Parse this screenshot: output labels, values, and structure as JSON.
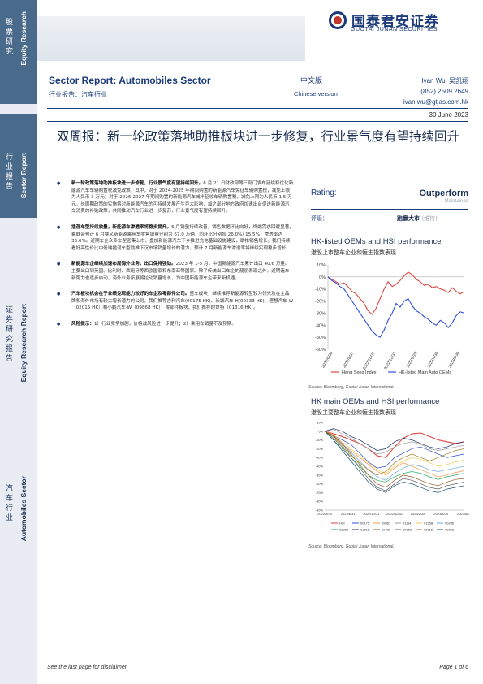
{
  "sidebar": {
    "blocks": [
      {
        "cn": [
          "股",
          "票",
          "研",
          "究"
        ],
        "en": "Equity Research"
      },
      {
        "cn": [
          "行",
          "业",
          "报",
          "告"
        ],
        "en": "Sector Report"
      },
      {
        "cn": [
          "证",
          "券",
          "研",
          "究",
          "报",
          "告"
        ],
        "en": "Equity Research Report"
      },
      {
        "cn": [
          "汽",
          "车",
          "行",
          "业"
        ],
        "en": "Automobiles Sector"
      }
    ]
  },
  "logo": {
    "cn": "国泰君安证券",
    "en": "GUOTAI JUNAN SECURITIES"
  },
  "header": {
    "title": "Sector Report:  Automobiles Sector",
    "subtitle": "行业报告：汽车行业",
    "lang": "中文版",
    "lang_en": "Chinese version",
    "analyst_name": "Ivan  Wu",
    "analyst_cn": "吴凯翔",
    "phone": "(852) 2509 2649",
    "email": "ivan.wu@gtjas.com.hk",
    "date": "30 June 2023"
  },
  "headline": "双周报：新一轮政策落地助推板块进一步修复，行业景气度有望持续回升",
  "bullets": [
    {
      "bold": "新一轮政策落地助推板块进一步修复，行业景气度有望持续回升。",
      "text": "6 月 21 日财政部等三部门发布延续和优化新能源汽车车辆购置税减免政策，其中，对于 2024-2025 年期间购置的新能源汽车免征车辆购置税，减免上限为人民币 3 万元；对于 2026-2027 年期间购置的新能源汽车减半征收车辆购置税，减免上限为人民币 1.5 万元。长周期政策的实施将对新能源汽车的可持续发展产生巨大影响，加之部分地方政府加速出台促进新能源汽车消费的补贴政策，共同推动汽车行业进一步复苏，行业景气度有望持续回升。"
    },
    {
      "bold": "插混车型持续放量，新能源车渗透率将稳步提升。",
      "text": "6 月销量持续改善，销售数据环比向好，终端需求回暖显著，乘联会预计 6 月狭义新能源乘用车零售销量分别为 67.0 万辆，同环比分别增 26.0%/ 15.5%，渗透率达 36.6%。近期车企众多车型密集上市，叠加新能源汽车下乡推进充电基础设施建设，助推销售增长。我们持续看好高性价比中低端插混车型助推下沉市场销量增长的潜力，预计 7 月新能源车渗透率将继续实现稳步增长。"
    },
    {
      "bold": "新能源车企继续加速布局海外业务，出口保持强劲。",
      "text": "2023 年 1-5 月，中国新能源汽车累计出口 40.6 万量。主要出口到英国、比利时、西班牙等西欧国家和东南亚等国家。除了传统出口车企的靓丽表现之外，近期造车新势力也逐步启动，海外业务拓展将拉动销量增长，为中国新能源车企带来新机遇。"
    },
    {
      "bold": "汽车板块机会在于业绩兑现能力较好的车企及零部件公司。",
      "text": "整车板块，继续推荐新能源转型较为领先及在主品牌和海外市场有较大增长潜力的公司，我们推荐吉利汽车(00175 HK)、长城汽车-H(02333 HK)、理想汽车-W（02015 HK）和小鹏汽车-W（09868 HK）；零部件板块，我们推荐耐世特（01316 HK）。"
    },
    {
      "bold": "风险提示：",
      "text": "1）行业竞争加剧，价格战风险进一步提升；2）乘用车销量不及预期。"
    }
  ],
  "rating": {
    "label": "Rating:",
    "value": "Outperform",
    "maintained": "Maintained",
    "cn_label": "评级：",
    "cn_value": "跑赢大市",
    "cn_maint": "(维持)"
  },
  "chart1_text": {
    "title": "HK-listed OEMs and HSI performance",
    "subtitle": "港股上市整车企业和恒生指数表现",
    "source": "Source: Bloomberg, Guotai Junan International."
  },
  "chart2_text": {
    "title": "HK main OEMs and HSI performance",
    "subtitle": "港股主要整车企业和恒生指数表现",
    "source": "Source: Bloomberg, Guotai Junan International."
  },
  "chart_data": [
    {
      "type": "line",
      "title": "HK-listed OEMs and HSI performance",
      "ylim": [
        -60,
        10
      ],
      "yticks": [
        "10%",
        "0%",
        "-10%",
        "-20%",
        "-30%",
        "-40%",
        "-50%",
        "-60%"
      ],
      "xticks": [
        "2022/6/30",
        "2022/8/31",
        "2022/10/31",
        "2022/12/31",
        "2023/2/28",
        "2023/4/30",
        "2023/6/30"
      ],
      "colors": {
        "hsi": "#e0433d",
        "auto": "#2f4fd6"
      },
      "legend": [
        "Heng Seng Index",
        "HK-listed Main Auto OEMs"
      ],
      "series": [
        {
          "name": "Heng Seng Index",
          "values": [
            0,
            -2,
            -4,
            -6,
            -5,
            -8,
            -12,
            -14,
            -18,
            -22,
            -28,
            -31,
            -26,
            -18,
            -10,
            -4,
            -8,
            -6,
            -3,
            1,
            4,
            2,
            -2,
            -4,
            -7,
            -6,
            -9,
            -8,
            -10,
            -11,
            -13,
            -9,
            -12,
            -14,
            -12
          ]
        },
        {
          "name": "HK-listed Main Auto OEMs",
          "values": [
            0,
            -3,
            -5,
            -8,
            -10,
            -15,
            -20,
            -25,
            -30,
            -35,
            -40,
            -45,
            -48,
            -50,
            -44,
            -36,
            -30,
            -22,
            -25,
            -20,
            -18,
            -24,
            -28,
            -30,
            -33,
            -35,
            -38,
            -40,
            -36,
            -38,
            -42,
            -38,
            -32,
            -29,
            -30
          ]
        }
      ]
    },
    {
      "type": "line",
      "title": "HK main OEMs and HSI performance",
      "ylim": [
        -90,
        10
      ],
      "yticks": [
        "10%",
        "0%",
        "-10%",
        "-20%",
        "-30%",
        "-40%",
        "-50%",
        "-60%",
        "-70%",
        "-80%",
        "-90%"
      ],
      "xticks": [
        "2022/6/30",
        "2022/8/31",
        "2022/10/31",
        "2022/12/31",
        "2023/2/28",
        "2023/4/30",
        "2023/6/30"
      ],
      "legend": [
        "HSI",
        "00175",
        "09863",
        "01114",
        "01958",
        "00236",
        "02333",
        "01211",
        "00489",
        "09866",
        "02015",
        "09863"
      ],
      "series": [
        {
          "name": "HSI",
          "color": "#e0433d",
          "values": [
            0,
            -3,
            -6,
            -10,
            -14,
            -20,
            -28,
            -30,
            -18,
            -8,
            -3,
            -2,
            -6,
            -10,
            -12,
            -14,
            -12
          ]
        },
        {
          "name": "00175",
          "color": "#2f4fd6",
          "values": [
            0,
            -5,
            -10,
            -15,
            -25,
            -35,
            -42,
            -40,
            -30,
            -25,
            -20,
            -18,
            -22,
            -26,
            -30,
            -28,
            -26
          ]
        },
        {
          "name": "09863",
          "color": "#f2994a",
          "values": [
            0,
            -8,
            -15,
            -22,
            -30,
            -38,
            -46,
            -50,
            -42,
            -36,
            -40,
            -44,
            -48,
            -52,
            -50,
            -47,
            -45
          ]
        },
        {
          "name": "01114",
          "color": "#9b9b9b",
          "values": [
            0,
            2,
            -3,
            -8,
            -14,
            -20,
            -26,
            -24,
            -18,
            -14,
            -12,
            -15,
            -20,
            -22,
            -20,
            -18,
            -16
          ]
        },
        {
          "name": "01958",
          "color": "#f2c94c",
          "values": [
            0,
            -4,
            -12,
            -20,
            -28,
            -36,
            -44,
            -48,
            -40,
            -34,
            -30,
            -32,
            -36,
            -40,
            -38,
            -35,
            -33
          ]
        },
        {
          "name": "00236",
          "color": "#6fa8dc",
          "values": [
            0,
            -6,
            -14,
            -24,
            -34,
            -44,
            -52,
            -56,
            -48,
            -42,
            -38,
            -40,
            -44,
            -46,
            -44,
            -42,
            -40
          ]
        },
        {
          "name": "02333",
          "color": "#27ae60",
          "values": [
            0,
            -10,
            -20,
            -30,
            -40,
            -50,
            -56,
            -58,
            -52,
            -48,
            -46,
            -48,
            -52,
            -55,
            -52,
            -50,
            -48
          ]
        },
        {
          "name": "01211",
          "color": "#1b2e6b",
          "values": [
            0,
            3,
            0,
            -6,
            -10,
            -16,
            -22,
            -20,
            -12,
            -8,
            -10,
            -14,
            -18,
            -20,
            -18,
            -14,
            -12
          ]
        },
        {
          "name": "00489",
          "color": "#8e5a2b",
          "values": [
            0,
            -5,
            -14,
            -26,
            -38,
            -50,
            -60,
            -64,
            -56,
            -50,
            -52,
            -56,
            -60,
            -62,
            -58,
            -55,
            -54
          ]
        },
        {
          "name": "09866",
          "color": "#5b5b5b",
          "values": [
            0,
            -8,
            -18,
            -30,
            -42,
            -54,
            -64,
            -68,
            -60,
            -54,
            -56,
            -60,
            -64,
            -66,
            -62,
            -60,
            -58
          ]
        },
        {
          "name": "02015",
          "color": "#a17e2b",
          "values": [
            0,
            -6,
            -16,
            -28,
            -36,
            -44,
            -50,
            -46,
            -36,
            -30,
            -26,
            -30,
            -34,
            -30,
            -26,
            -22,
            -20
          ]
        },
        {
          "name": "09863",
          "color": "#1c4f7a",
          "values": [
            0,
            -10,
            -22,
            -34,
            -46,
            -58,
            -66,
            -70,
            -62,
            -58,
            -60,
            -64,
            -68,
            -70,
            -66,
            -64,
            -62
          ]
        }
      ]
    }
  ],
  "footer": {
    "left": "See the last page for disclaimer",
    "right": "Page 1 of 6"
  }
}
